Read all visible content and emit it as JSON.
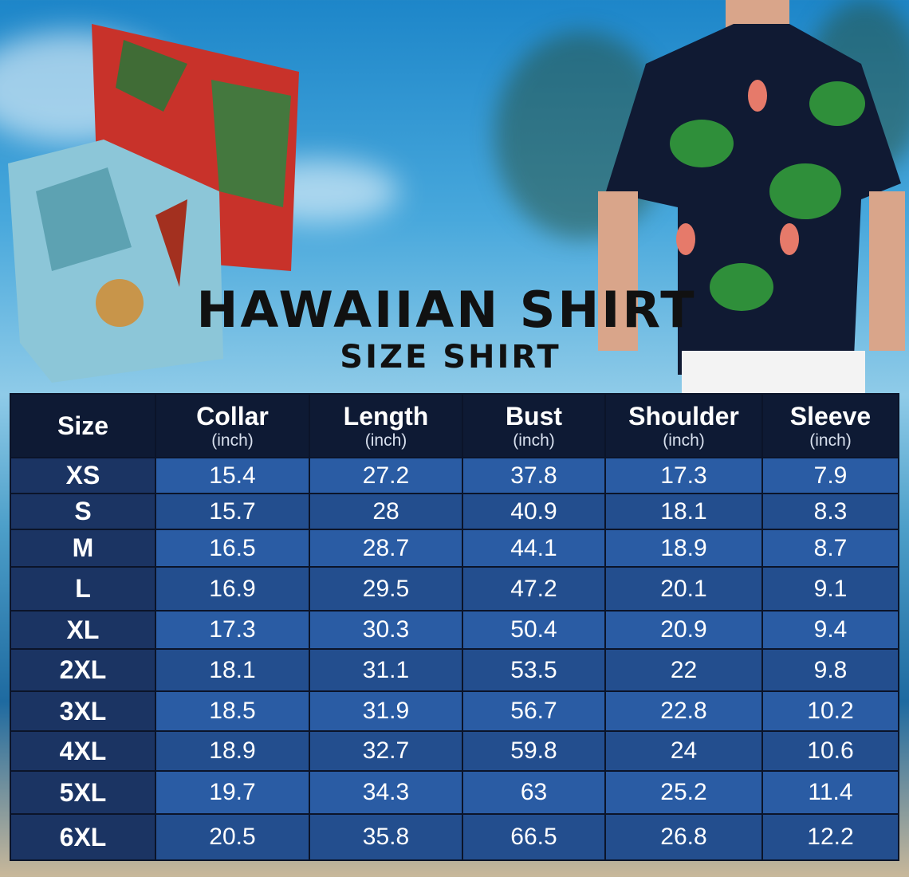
{
  "title": "HAWAIIAN SHIRT",
  "subtitle": "SIZE SHIRT",
  "colors": {
    "header_bg": "#0e1a34",
    "size_col_bg": "#1b3463",
    "cell_bg": "#2a5ca4",
    "text": "#ffffff"
  },
  "table": {
    "headers": [
      {
        "label": "Size",
        "unit": ""
      },
      {
        "label": "Collar",
        "unit": "(inch)"
      },
      {
        "label": "Length",
        "unit": "(inch)"
      },
      {
        "label": "Bust",
        "unit": "(inch)"
      },
      {
        "label": "Shoulder",
        "unit": "(inch)"
      },
      {
        "label": "Sleeve",
        "unit": "(inch)"
      }
    ],
    "rows": [
      [
        "XS",
        "15.4",
        "27.2",
        "37.8",
        "17.3",
        "7.9"
      ],
      [
        "S",
        "15.7",
        "28",
        "40.9",
        "18.1",
        "8.3"
      ],
      [
        "M",
        "16.5",
        "28.7",
        "44.1",
        "18.9",
        "8.7"
      ],
      [
        "L",
        "16.9",
        "29.5",
        "47.2",
        "20.1",
        "9.1"
      ],
      [
        "XL",
        "17.3",
        "30.3",
        "50.4",
        "20.9",
        "9.4"
      ],
      [
        "2XL",
        "18.1",
        "31.1",
        "53.5",
        "22",
        "9.8"
      ],
      [
        "3XL",
        "18.5",
        "31.9",
        "56.7",
        "22.8",
        "10.2"
      ],
      [
        "4XL",
        "18.9",
        "32.7",
        "59.8",
        "24",
        "10.6"
      ],
      [
        "5XL",
        "19.7",
        "34.3",
        "63",
        "25.2",
        "11.4"
      ],
      [
        "6XL",
        "20.5",
        "35.8",
        "66.5",
        "26.8",
        "12.2"
      ]
    ]
  }
}
